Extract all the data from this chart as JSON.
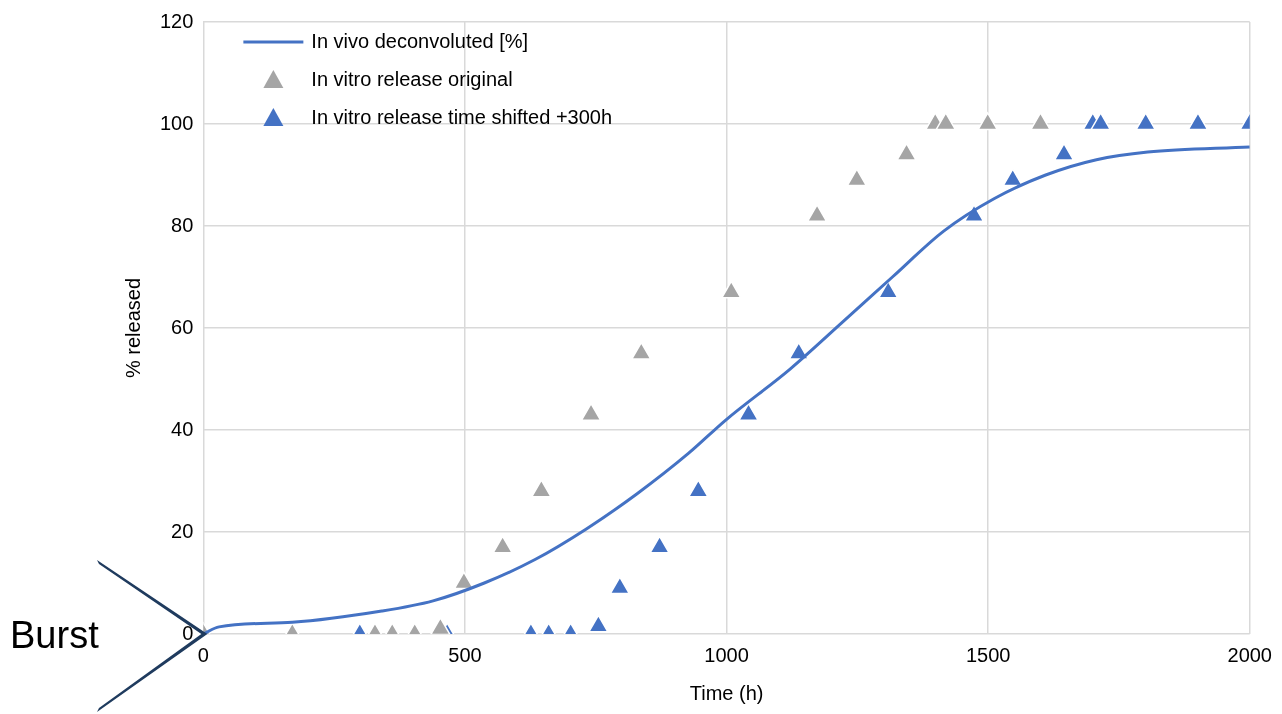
{
  "chart_data": {
    "type": "scatter",
    "xlabel": "Time (h)",
    "ylabel": "% released",
    "xlim": [
      0,
      2000
    ],
    "xticks": [
      0,
      500,
      1000,
      1500,
      2000
    ],
    "ylim": [
      0,
      120
    ],
    "yticks": [
      0,
      20,
      40,
      60,
      80,
      100,
      120
    ],
    "grid": true,
    "legend": "top left",
    "marker": "triangle",
    "annotations": [
      {
        "text": "Burst",
        "x": 0,
        "y": 0
      }
    ],
    "series": [
      {
        "name": "In vivo deconvoluted [%]",
        "type": "line",
        "marker": "none",
        "color": "#4472c4",
        "x": [
          0,
          30,
          170,
          341,
          439,
          537,
          634,
          732,
          829,
          927,
          999,
          1122,
          1220,
          1317,
          1415,
          1512,
          1610,
          1707,
          1805,
          2000
        ],
        "values": [
          0,
          1.4,
          2.3,
          4.5,
          6.5,
          10,
          14.6,
          20.6,
          27.5,
          35.4,
          42,
          52,
          61,
          70,
          79,
          85.4,
          90,
          93,
          94.5,
          95.5
        ]
      },
      {
        "name": "In vitro release original",
        "type": "scatter",
        "color": "#a5a5a5",
        "x": [
          0,
          170,
          328,
          361,
          404,
          453,
          498,
          572,
          646,
          741,
          837,
          1009,
          1173,
          1249,
          1344,
          1399,
          1419,
          1499,
          1600
        ],
        "values": [
          0,
          0,
          0,
          0,
          0,
          1,
          10,
          17,
          28,
          43,
          55,
          67,
          82,
          89,
          94,
          100,
          100,
          100,
          100
        ]
      },
      {
        "name": "In vitro release time shifted +300h",
        "type": "scatter",
        "color": "#4472c4",
        "x": [
          299,
          466,
          626,
          660,
          702,
          755,
          796,
          872,
          946,
          1042,
          1138,
          1309,
          1473,
          1547,
          1645,
          1700,
          1715,
          1801,
          1901,
          2000
        ],
        "values": [
          0,
          0,
          0,
          0,
          0,
          1.5,
          9,
          17,
          28,
          43,
          55,
          67,
          82,
          89,
          94,
          100,
          100,
          100,
          100,
          100
        ]
      }
    ]
  }
}
